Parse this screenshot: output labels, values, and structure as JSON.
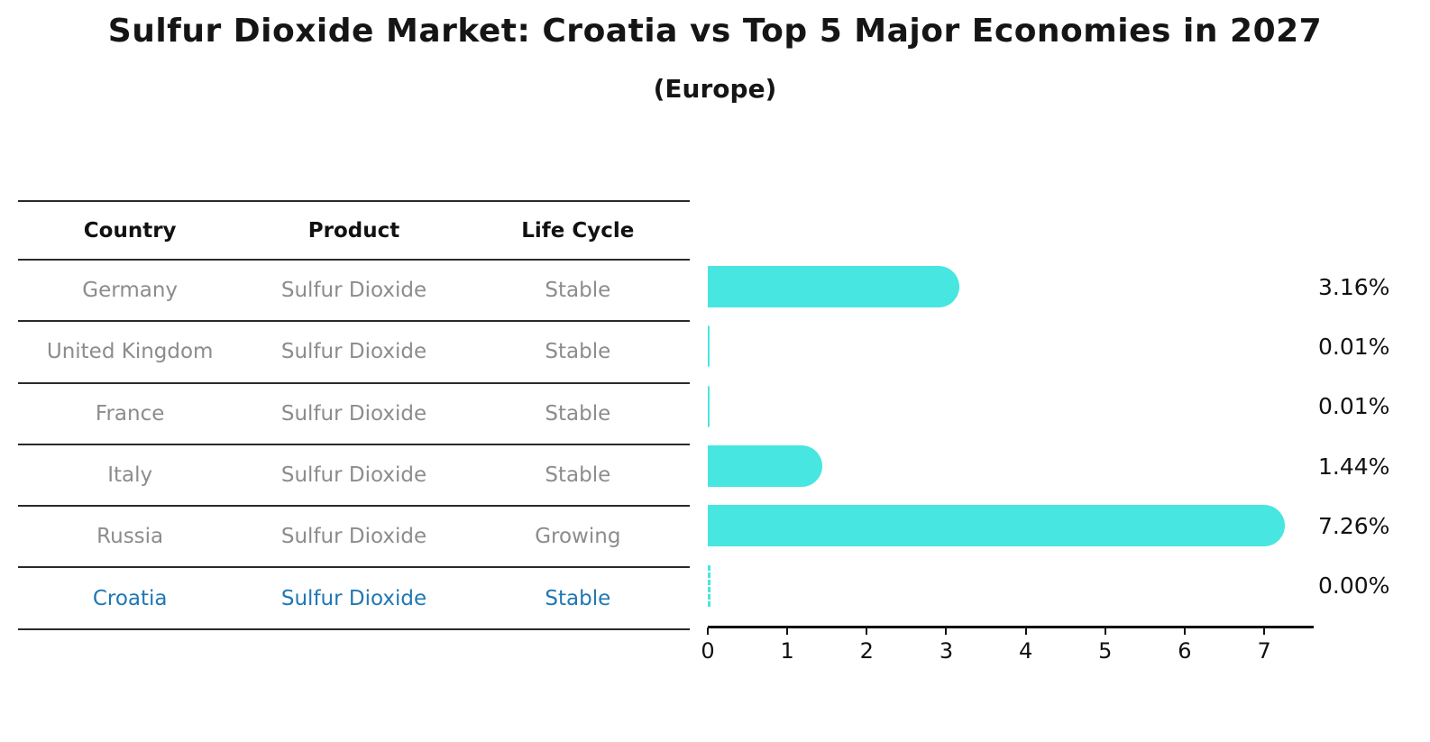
{
  "title": "Sulfur Dioxide Market: Croatia vs Top 5 Major Economies in 2027",
  "subtitle": "(Europe)",
  "table": {
    "headers": [
      "Country",
      "Product",
      "Life Cycle"
    ],
    "rows": [
      {
        "country": "Germany",
        "product": "Sulfur Dioxide",
        "life_cycle": "Stable"
      },
      {
        "country": "United Kingdom",
        "product": "Sulfur Dioxide",
        "life_cycle": "Stable"
      },
      {
        "country": "France",
        "product": "Sulfur Dioxide",
        "life_cycle": "Stable"
      },
      {
        "country": "Italy",
        "product": "Sulfur Dioxide",
        "life_cycle": "Stable"
      },
      {
        "country": "Russia",
        "product": "Sulfur Dioxide",
        "life_cycle": "Growing"
      },
      {
        "country": "Croatia",
        "product": "Sulfur Dioxide",
        "life_cycle": "Stable"
      }
    ]
  },
  "chart_data": {
    "type": "bar",
    "orientation": "horizontal",
    "title": "Sulfur Dioxide Market: Croatia vs Top 5 Major Economies in 2027",
    "subtitle": "(Europe)",
    "categories": [
      "Germany",
      "United Kingdom",
      "France",
      "Italy",
      "Russia",
      "Croatia"
    ],
    "values": [
      3.16,
      0.01,
      0.01,
      1.44,
      7.26,
      0.0
    ],
    "value_labels": [
      "3.16%",
      "0.01%",
      "0.01%",
      "1.44%",
      "7.26%",
      "0.00%"
    ],
    "xlabel": "",
    "ylabel": "",
    "xlim": [
      0,
      7.6
    ],
    "xticks": [
      0,
      1,
      2,
      3,
      4,
      5,
      6,
      7
    ],
    "grid": false,
    "legend": "none",
    "highlight_index": 5
  },
  "colors": {
    "bar": "#47e6e0",
    "highlight_text": "#1f77b4",
    "row_text": "#8c8c8c",
    "header_text": "#111111",
    "axis": "#111111"
  }
}
